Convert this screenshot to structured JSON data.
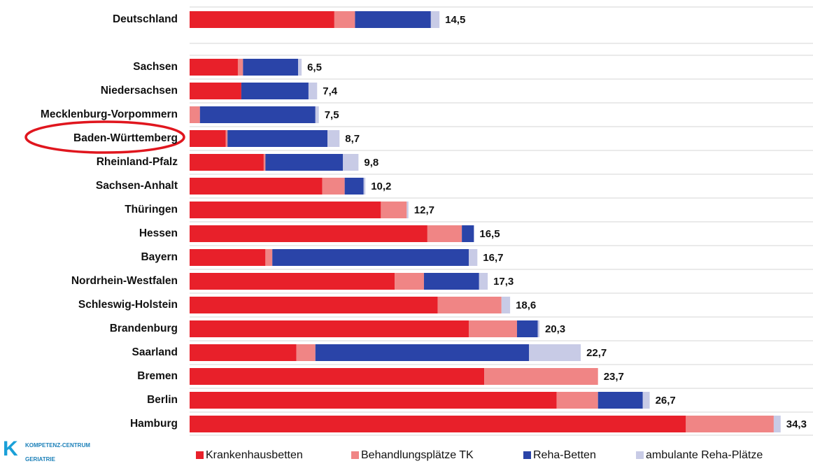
{
  "chart_data": {
    "type": "stacked-bar-horizontal",
    "categories": [
      "Deutschland",
      "Sachsen",
      "Niedersachsen",
      "Mecklenburg-Vorpommern",
      "Baden-Württemberg",
      "Rheinland-Pfalz",
      "Sachsen-Anhalt",
      "Thüringen",
      "Hessen",
      "Bayern",
      "Nordrhein-Westfalen",
      "Schleswig-Holstein",
      "Brandenburg",
      "Saarland",
      "Bremen",
      "Berlin",
      "Hamburg"
    ],
    "series": [
      {
        "name": "Krankenhausbetten",
        "color": "#e8202a",
        "values": [
          8.4,
          2.8,
          3.0,
          0,
          2.1,
          4.3,
          7.7,
          11.1,
          13.8,
          4.4,
          11.9,
          14.4,
          16.2,
          6.2,
          17.1,
          21.3,
          28.8
        ]
      },
      {
        "name": "Behandlungsplätze TK",
        "color": "#f08585",
        "values": [
          1.2,
          0.3,
          0,
          0.6,
          0.1,
          0.1,
          1.3,
          1.5,
          2.0,
          0.4,
          1.7,
          3.7,
          2.8,
          1.1,
          6.6,
          2.4,
          5.1
        ]
      },
      {
        "name": "Reha-Betten",
        "color": "#2a44a8",
        "values": [
          4.4,
          3.2,
          3.9,
          6.7,
          5.8,
          4.5,
          1.1,
          0,
          0.7,
          11.4,
          3.2,
          0,
          1.2,
          12.4,
          0,
          2.6,
          0
        ]
      },
      {
        "name": "ambulante Reha-Plätze",
        "color": "#c8cbe6",
        "values": [
          0.5,
          0.2,
          0.5,
          0.2,
          0.7,
          0.9,
          0.1,
          0.1,
          0,
          0.5,
          0.5,
          0.5,
          0.1,
          3.0,
          0,
          0.4,
          0.4
        ]
      }
    ],
    "totals": [
      14.5,
      6.5,
      7.4,
      7.5,
      8.7,
      9.8,
      10.2,
      12.7,
      16.5,
      16.7,
      17.3,
      18.6,
      20.3,
      22.7,
      23.7,
      26.7,
      34.3
    ],
    "total_labels": [
      "14,5",
      "6,5",
      "7,4",
      "7,5",
      "8,7",
      "9,8",
      "10,2",
      "12,7",
      "16,5",
      "16,7",
      "17,3",
      "18,6",
      "20,3",
      "22,7",
      "23,7",
      "26,7",
      "34,3"
    ],
    "xlim": [
      0,
      35
    ],
    "legend": "bottom"
  },
  "logo": {
    "letter": "K",
    "line1": "KOMPETENZ-CENTRUM",
    "line2": "GERIATRIE"
  }
}
